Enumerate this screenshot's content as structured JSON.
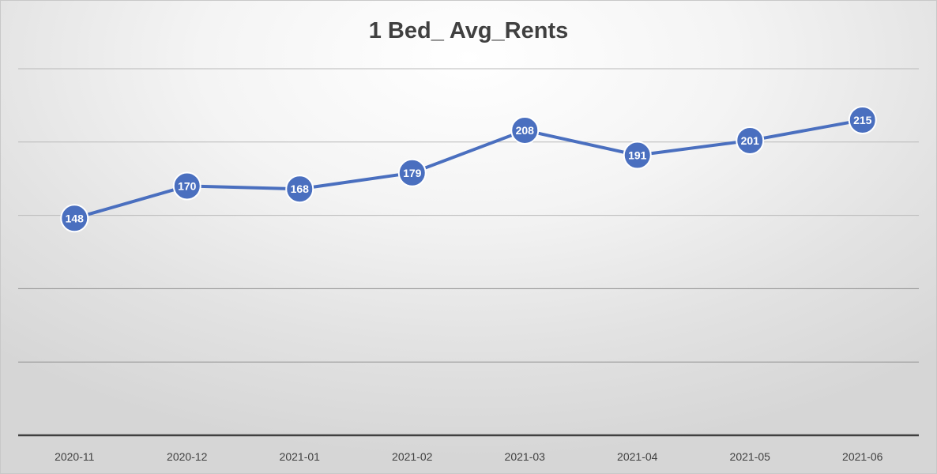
{
  "chart_data": {
    "type": "line",
    "title": "1 Bed_ Avg_Rents",
    "xlabel": "",
    "ylabel": "",
    "categories": [
      "2020-11",
      "2020-12",
      "2021-01",
      "2021-02",
      "2021-03",
      "2021-04",
      "2021-05",
      "2021-06"
    ],
    "series": [
      {
        "values": [
          148,
          170,
          168,
          179,
          208,
          191,
          201,
          215
        ],
        "color": "#4a6fbf"
      }
    ],
    "ylim": [
      0,
      250
    ],
    "gridlines": [
      50,
      100,
      150,
      200,
      250
    ],
    "grid": true,
    "legend": "none",
    "data_labels": true,
    "y_tick_labels_visible": false
  }
}
